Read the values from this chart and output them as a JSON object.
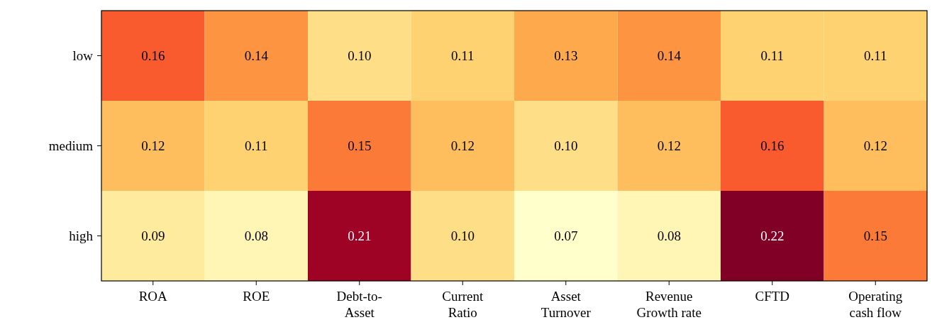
{
  "chart_data": {
    "type": "heatmap",
    "categories": [
      "ROA",
      "ROE",
      "Debt-to-\nAsset",
      "Current\nRatio",
      "Asset\nTurnover",
      "Revenue\nGrowth rate",
      "CFTD",
      "Operating\ncash flow"
    ],
    "y_categories": [
      "low",
      "medium",
      "high"
    ],
    "cells": [
      [
        0.16,
        0.14,
        0.1,
        0.11,
        0.13,
        0.14,
        0.11,
        0.11
      ],
      [
        0.12,
        0.11,
        0.15,
        0.12,
        0.1,
        0.12,
        0.16,
        0.12
      ],
      [
        0.09,
        0.08,
        0.21,
        0.1,
        0.07,
        0.08,
        0.22,
        0.15
      ]
    ],
    "cell_labels": [
      [
        "0.16",
        "0.14",
        "0.10",
        "0.11",
        "0.13",
        "0.14",
        "0.11",
        "0.11"
      ],
      [
        "0.12",
        "0.11",
        "0.15",
        "0.12",
        "0.10",
        "0.12",
        "0.16",
        "0.12"
      ],
      [
        "0.09",
        "0.08",
        "0.21",
        "0.10",
        "0.07",
        "0.08",
        "0.22",
        "0.15"
      ]
    ],
    "data_labels": true
  }
}
